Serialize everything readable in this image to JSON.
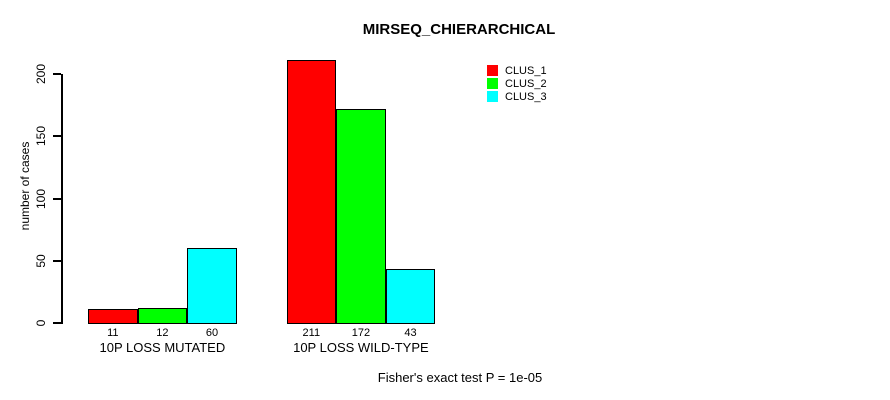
{
  "chart_data": {
    "type": "bar",
    "title": "MIRSEQ_CHIERARCHICAL",
    "ylabel": "number of cases",
    "xlabel": "",
    "categories": [
      "10P LOSS MUTATED",
      "10P LOSS WILD-TYPE"
    ],
    "series": [
      {
        "name": "CLUS_1",
        "color": "#ff0000",
        "values": [
          11,
          211
        ]
      },
      {
        "name": "CLUS_2",
        "color": "#00ff00",
        "values": [
          12,
          172
        ]
      },
      {
        "name": "CLUS_3",
        "color": "#00ffff",
        "values": [
          60,
          43
        ]
      }
    ],
    "yticks": [
      0,
      50,
      100,
      150,
      200
    ],
    "ylim": [
      0,
      212
    ],
    "grid": false,
    "legend_position": "upper-right-inside",
    "annotation": "Fisher's exact test P = 1e-05",
    "bar_border_color": "#000000",
    "text_color": "#000000",
    "background_color": "#ffffff"
  }
}
